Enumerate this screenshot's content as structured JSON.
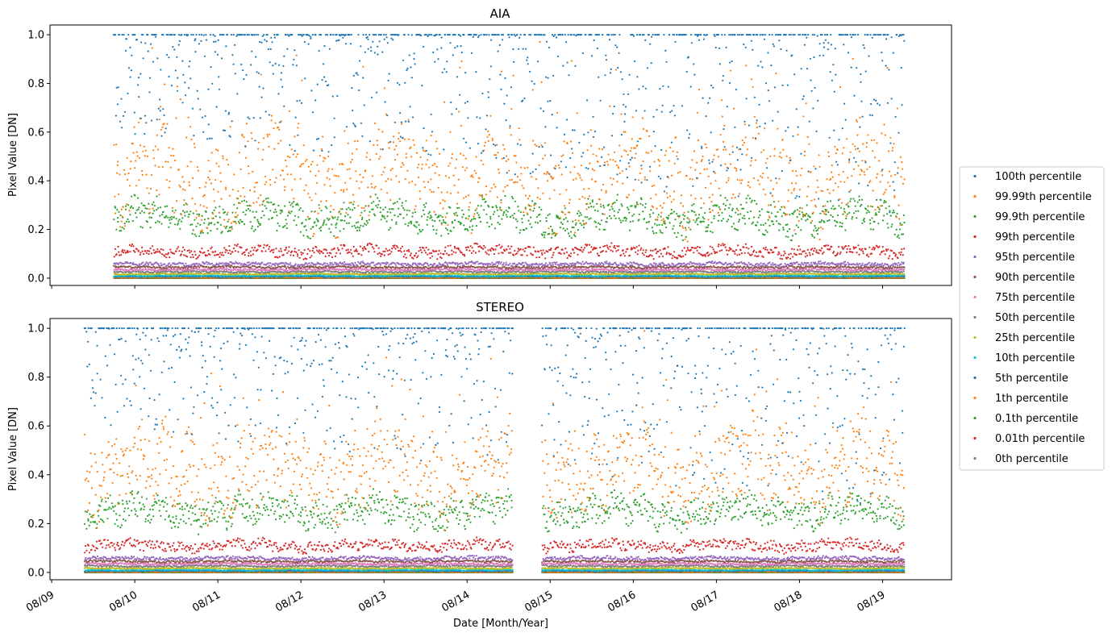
{
  "chart_data": [
    {
      "type": "scatter",
      "title": "AIA",
      "xlabel": "",
      "ylabel": "Pixel Value [DN]",
      "ylim": [
        -0.03,
        1.04
      ],
      "yticks": [
        0.0,
        0.2,
        0.4,
        0.6,
        0.8,
        1.0
      ],
      "ytick_labels": [
        "0.0",
        "0.2",
        "0.4",
        "0.6",
        "0.8",
        "1.0"
      ],
      "x_tick_labels_visible": false,
      "x_start": 9.75,
      "x_end": 19.27,
      "gaps": [],
      "series": [
        {
          "name": "100th percentile",
          "color": "#1f77b4",
          "level": 0.99,
          "spread": 0.35,
          "upper_cap": 1.0
        },
        {
          "name": "99.99th percentile",
          "color": "#ff7f0e",
          "level": 0.42,
          "spread": 0.2
        },
        {
          "name": "99.9th percentile",
          "color": "#2ca02c",
          "level": 0.25,
          "spread": 0.07
        },
        {
          "name": "99th percentile",
          "color": "#d62728",
          "level": 0.11,
          "spread": 0.025
        },
        {
          "name": "95th percentile",
          "color": "#9467bd",
          "level": 0.058,
          "spread": 0.008
        },
        {
          "name": "90th percentile",
          "color": "#8c564b",
          "level": 0.045,
          "spread": 0.005
        },
        {
          "name": "75th percentile",
          "color": "#e377c2",
          "level": 0.035,
          "spread": 0.004
        },
        {
          "name": "50th percentile",
          "color": "#7f7f7f",
          "level": 0.026,
          "spread": 0.004
        },
        {
          "name": "25th percentile",
          "color": "#bcbd22",
          "level": 0.017,
          "spread": 0.003
        },
        {
          "name": "10th percentile",
          "color": "#17becf",
          "level": 0.01,
          "spread": 0.003
        },
        {
          "name": "5th percentile",
          "color": "#1f77b4",
          "level": 0.006,
          "spread": 0.002
        },
        {
          "name": "1th percentile",
          "color": "#ff7f0e",
          "level": 0.003,
          "spread": 0.002
        },
        {
          "name": "0.1th percentile",
          "color": "#2ca02c",
          "level": 0.001,
          "spread": 0.001
        },
        {
          "name": "0.01th percentile",
          "color": "#d62728",
          "level": 0.0,
          "spread": 0.001
        },
        {
          "name": "0th percentile",
          "color": "#7f7f7f",
          "level": 0.0,
          "spread": 0.0
        }
      ]
    },
    {
      "type": "scatter",
      "title": "STEREO",
      "xlabel": "Date [Month/Year]",
      "ylabel": "Pixel Value [DN]",
      "ylim": [
        -0.03,
        1.04
      ],
      "yticks": [
        0.0,
        0.2,
        0.4,
        0.6,
        0.8,
        1.0
      ],
      "ytick_labels": [
        "0.0",
        "0.2",
        "0.4",
        "0.6",
        "0.8",
        "1.0"
      ],
      "x_tick_labels_visible": true,
      "x_start": 9.4,
      "x_end": 19.27,
      "gaps": [
        [
          14.55,
          14.9
        ]
      ],
      "series": [
        {
          "name": "100th percentile",
          "color": "#1f77b4",
          "level": 0.99,
          "spread": 0.35,
          "upper_cap": 1.0
        },
        {
          "name": "99.99th percentile",
          "color": "#ff7f0e",
          "level": 0.42,
          "spread": 0.18
        },
        {
          "name": "99.9th percentile",
          "color": "#2ca02c",
          "level": 0.25,
          "spread": 0.07
        },
        {
          "name": "99th percentile",
          "color": "#d62728",
          "level": 0.11,
          "spread": 0.025
        },
        {
          "name": "95th percentile",
          "color": "#9467bd",
          "level": 0.058,
          "spread": 0.008
        },
        {
          "name": "90th percentile",
          "color": "#8c564b",
          "level": 0.045,
          "spread": 0.005
        },
        {
          "name": "75th percentile",
          "color": "#e377c2",
          "level": 0.035,
          "spread": 0.004
        },
        {
          "name": "50th percentile",
          "color": "#7f7f7f",
          "level": 0.026,
          "spread": 0.004
        },
        {
          "name": "25th percentile",
          "color": "#bcbd22",
          "level": 0.017,
          "spread": 0.003
        },
        {
          "name": "10th percentile",
          "color": "#17becf",
          "level": 0.01,
          "spread": 0.003
        },
        {
          "name": "5th percentile",
          "color": "#1f77b4",
          "level": 0.006,
          "spread": 0.002
        },
        {
          "name": "1th percentile",
          "color": "#ff7f0e",
          "level": 0.003,
          "spread": 0.002
        },
        {
          "name": "0.1th percentile",
          "color": "#2ca02c",
          "level": 0.001,
          "spread": 0.001
        },
        {
          "name": "0.01th percentile",
          "color": "#d62728",
          "level": 0.0,
          "spread": 0.001
        },
        {
          "name": "0th percentile",
          "color": "#7f7f7f",
          "level": 0.0,
          "spread": 0.0
        }
      ]
    }
  ],
  "xlim_days": [
    8.98,
    19.83
  ],
  "x_ticks": [
    {
      "day": 9,
      "label": "08/09"
    },
    {
      "day": 10,
      "label": "08/10"
    },
    {
      "day": 11,
      "label": "08/11"
    },
    {
      "day": 12,
      "label": "08/12"
    },
    {
      "day": 13,
      "label": "08/13"
    },
    {
      "day": 14,
      "label": "08/14"
    },
    {
      "day": 15,
      "label": "08/15"
    },
    {
      "day": 16,
      "label": "08/16"
    },
    {
      "day": 17,
      "label": "08/17"
    },
    {
      "day": 18,
      "label": "08/18"
    },
    {
      "day": 19,
      "label": "08/19"
    }
  ],
  "legend": {
    "placement": "right",
    "entries": [
      {
        "label": "100th percentile",
        "color": "#1f77b4"
      },
      {
        "label": "99.99th percentile",
        "color": "#ff7f0e"
      },
      {
        "label": "99.9th percentile",
        "color": "#2ca02c"
      },
      {
        "label": "99th percentile",
        "color": "#d62728"
      },
      {
        "label": "95th percentile",
        "color": "#9467bd"
      },
      {
        "label": "90th percentile",
        "color": "#8c564b"
      },
      {
        "label": "75th percentile",
        "color": "#e377c2"
      },
      {
        "label": "50th percentile",
        "color": "#7f7f7f"
      },
      {
        "label": "25th percentile",
        "color": "#bcbd22"
      },
      {
        "label": "10th percentile",
        "color": "#17becf"
      },
      {
        "label": "5th percentile",
        "color": "#1f77b4"
      },
      {
        "label": "1th percentile",
        "color": "#ff7f0e"
      },
      {
        "label": "0.1th percentile",
        "color": "#2ca02c"
      },
      {
        "label": "0.01th percentile",
        "color": "#d62728"
      },
      {
        "label": "0th percentile",
        "color": "#7f7f7f"
      }
    ]
  }
}
